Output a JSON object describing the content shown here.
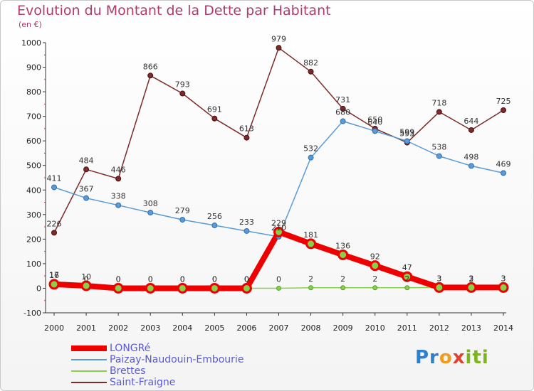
{
  "header": {
    "title": "Evolution du Montant de la Dette par Habitant",
    "subtitle": "(en €)"
  },
  "logo": {
    "text": "Proxiti"
  },
  "chart_data": {
    "type": "line",
    "title": "Evolution du Montant de la Dette par Habitant",
    "subtitle": "(en €)",
    "xlabel": "",
    "ylabel": "",
    "x": [
      "2000",
      "2001",
      "2002",
      "2003",
      "2004",
      "2005",
      "2006",
      "2007",
      "2008",
      "2009",
      "2010",
      "2011",
      "2012",
      "2013",
      "2014"
    ],
    "ylim": [
      -100,
      1000
    ],
    "yticks": [
      "-100",
      "0",
      "100",
      "200",
      "300",
      "400",
      "500",
      "600",
      "700",
      "800",
      "900",
      "1000"
    ],
    "grid": false,
    "legend_position": "bottom-left",
    "series": [
      {
        "name": "LONGRé",
        "color": "#ee0000",
        "values": [
          16,
          10,
          0,
          0,
          0,
          0,
          0,
          229,
          181,
          136,
          92,
          47,
          3,
          3,
          3
        ]
      },
      {
        "name": "Paizay-Naudouin-Embourie",
        "color": "#5b9bd5",
        "values": [
          411,
          367,
          338,
          308,
          279,
          256,
          233,
          210,
          532,
          680,
          640,
          599,
          538,
          498,
          469
        ]
      },
      {
        "name": "Brettes",
        "color": "#88d04b",
        "values": [
          17,
          0,
          0,
          0,
          0,
          0,
          0,
          0,
          2,
          2,
          2,
          2,
          3,
          2,
          3
        ]
      },
      {
        "name": "Saint-Fraigne",
        "color": "#7d2a2a",
        "values": [
          226,
          484,
          446,
          866,
          793,
          691,
          613,
          979,
          882,
          731,
          650,
          593,
          718,
          644,
          725
        ]
      }
    ]
  }
}
